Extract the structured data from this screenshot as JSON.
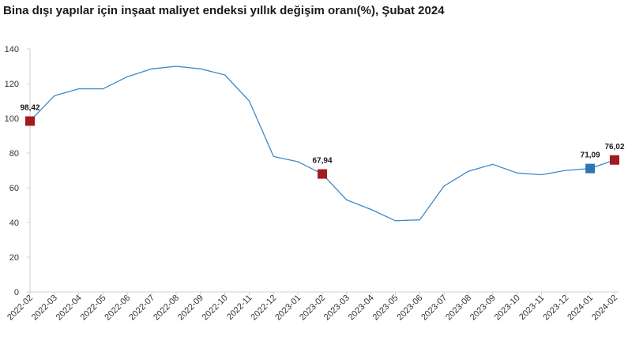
{
  "chart_data": {
    "type": "line",
    "title": "Bina dışı yapılar için inşaat maliyet endeksi yıllık değişim oranı(%), Şubat 2024",
    "xlabel": "",
    "ylabel": "",
    "ylim": [
      0,
      140
    ],
    "yticks": [
      0,
      20,
      40,
      60,
      80,
      100,
      120,
      140
    ],
    "grid": false,
    "line_color": "#3f88c5",
    "categories": [
      "2022-02",
      "2022-03",
      "2022-04",
      "2022-05",
      "2022-06",
      "2022-07",
      "2022-08",
      "2022-09",
      "2022-10",
      "2022-11",
      "2022-12",
      "2023-01",
      "2023-02",
      "2023-03",
      "2023-04",
      "2023-05",
      "2023-06",
      "2023-07",
      "2023-08",
      "2023-09",
      "2023-10",
      "2023-11",
      "2023-12",
      "2024-01",
      "2024-02"
    ],
    "series": [
      {
        "values": [
          98.42,
          113,
          117,
          117,
          124,
          128.5,
          130,
          128.5,
          125,
          110,
          78,
          75,
          67.94,
          53,
          47.5,
          41,
          41.5,
          61,
          69.5,
          73.5,
          68.5,
          67.5,
          70,
          71.09,
          76.02
        ]
      }
    ],
    "highlighted_points": [
      {
        "category": "2022-02",
        "value": 98.42,
        "label": "98,42",
        "color": "#a31c1c"
      },
      {
        "category": "2023-02",
        "value": 67.94,
        "label": "67,94",
        "color": "#a31c1c"
      },
      {
        "category": "2024-01",
        "value": 71.09,
        "label": "71,09",
        "color": "#2e75b6"
      },
      {
        "category": "2024-02",
        "value": 76.02,
        "label": "76,02",
        "color": "#a31c1c"
      }
    ]
  }
}
